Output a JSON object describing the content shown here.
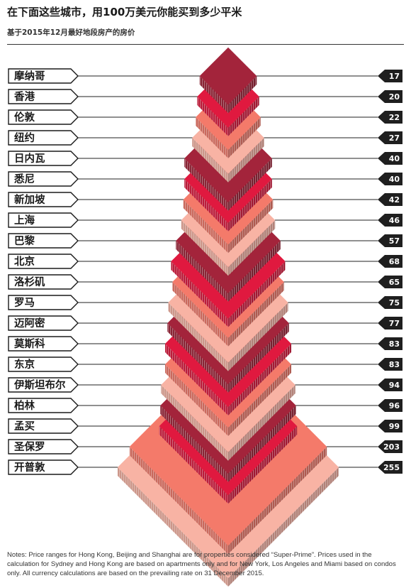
{
  "header": {
    "title": "在下面这些城市，用100万美元你能买到多少平米",
    "subtitle": "基于2015年12月最好地段房产的房价"
  },
  "notes": "Notes: Price ranges for Hong Kong, Beijing and Shanghai are for properties considered “Super-Prime”. Prices used in the calculation for Sydney and Hong Kong are based on apartments only and for New York, Los Angeles and Miami based on condos only. All currency calculations are based on the prevailing rate on 31 December 2015.",
  "colors": {
    "dark_red": "#a3243b",
    "red": "#e0193f",
    "salmon": "#f47a6a",
    "light_salmon": "#f8b3a4",
    "label_box": "#1f1f1f",
    "line": "#222222"
  },
  "chart_data": {
    "type": "bar",
    "categories": [
      "摩纳哥",
      "香港",
      "伦敦",
      "纽约",
      "日内瓦",
      "悉尼",
      "新加坡",
      "上海",
      "巴黎",
      "北京",
      "洛杉矶",
      "罗马",
      "迈阿密",
      "莫斯科",
      "东京",
      "伊斯坦布尔",
      "柏林",
      "孟买",
      "圣保罗",
      "开普敦"
    ],
    "values": [
      17,
      20,
      22,
      27,
      40,
      40,
      42,
      46,
      57,
      68,
      65,
      75,
      77,
      83,
      83,
      94,
      96,
      99,
      203,
      255
    ],
    "color_keys": [
      "dark_red",
      "red",
      "salmon",
      "light_salmon",
      "dark_red",
      "red",
      "salmon",
      "light_salmon",
      "dark_red",
      "red",
      "salmon",
      "light_salmon",
      "dark_red",
      "red",
      "salmon",
      "light_salmon",
      "dark_red",
      "red",
      "salmon",
      "light_salmon"
    ]
  }
}
